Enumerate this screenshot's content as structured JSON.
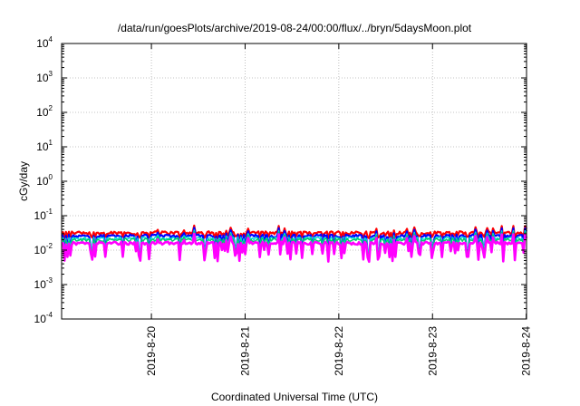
{
  "chart_data": {
    "type": "line",
    "title": "/data/run/goesPlots/archive/2019-08-24/00:00/flux/../bryn/5daysMoon.plot",
    "xlabel": "Coordinated Universal Time (UTC)",
    "ylabel": "cGy/day",
    "yscale": "log",
    "ylim": [
      0.0001,
      10000
    ],
    "yticks": [
      {
        "base": "10",
        "exp": "4",
        "value": 10000
      },
      {
        "base": "10",
        "exp": "3",
        "value": 1000
      },
      {
        "base": "10",
        "exp": "2",
        "value": 100
      },
      {
        "base": "10",
        "exp": "1",
        "value": 10
      },
      {
        "base": "10",
        "exp": "0",
        "value": 1
      },
      {
        "base": "10",
        "exp": "-1",
        "value": 0.1
      },
      {
        "base": "10",
        "exp": "-2",
        "value": 0.01
      },
      {
        "base": "10",
        "exp": "-3",
        "value": 0.001
      },
      {
        "base": "10",
        "exp": "-4",
        "value": 0.0001
      }
    ],
    "xlim": [
      "2019-08-19 01:00",
      "2019-08-24 00:05"
    ],
    "xticks": [
      "2019-8-20",
      "2019-8-21",
      "2019-8-22",
      "2019-8-23",
      "2019-8-24"
    ],
    "grid": true,
    "series": [
      {
        "color": "#ff0000",
        "base": 0.032,
        "dip": 0.022,
        "spike": 0.052,
        "lw": 2.2
      },
      {
        "color": "#0000ff",
        "base": 0.026,
        "dip": 0.006,
        "spike": 0.045,
        "lw": 2.2
      },
      {
        "color": "#00dddd",
        "base": 0.022,
        "dip": 0.0085,
        "spike": 0.038,
        "lw": 1.5
      },
      {
        "color": "#00cc66",
        "base": 0.02,
        "dip": 0.0068,
        "spike": 0.034,
        "lw": 1.5
      },
      {
        "color": "#ff00ff",
        "base": 0.016,
        "dip": 0.0045,
        "spike": 0.03,
        "lw": 2.6
      }
    ]
  }
}
